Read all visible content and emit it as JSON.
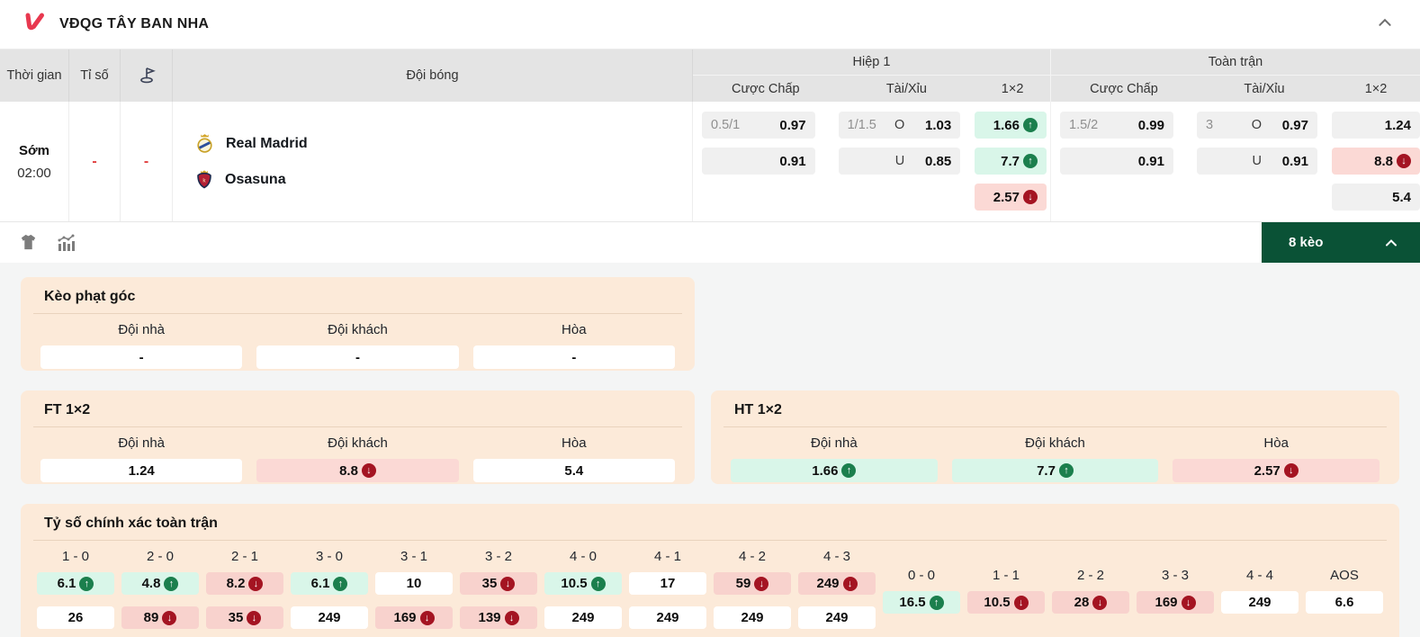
{
  "league_header": {
    "title": "VĐQG TÂY BAN NHA",
    "logo": "laliga-logo",
    "collapse_icon": "chevron-up"
  },
  "table": {
    "header": {
      "time": "Thời gian",
      "score": "Tỉ số",
      "corner_icon": "corner-flag-icon",
      "teams": "Đội bóng",
      "first_half": "Hiệp 1",
      "full_time": "Toàn trận",
      "handicap": "Cược Chấp",
      "over_under": "Tài/Xỉu",
      "one_x_two": "1×2"
    },
    "match": {
      "time_status": "Sớm",
      "time": "02:00",
      "score": "-",
      "corner": "-",
      "home_team": "Real Madrid",
      "away_team": "Osasuna",
      "first_half": {
        "handicap": [
          {
            "line": "0.5/1",
            "odds": "0.97"
          },
          {
            "line": "",
            "odds": "0.91"
          }
        ],
        "over_under": [
          {
            "line": "1/1.5",
            "side": "O",
            "odds": "1.03"
          },
          {
            "line": "",
            "side": "U",
            "odds": "0.85"
          }
        ],
        "one_x_two": [
          {
            "odds": "1.66",
            "trend": "up"
          },
          {
            "odds": "7.7",
            "trend": "up"
          },
          {
            "odds": "2.57",
            "trend": "down"
          }
        ]
      },
      "full_time": {
        "handicap": [
          {
            "line": "1.5/2",
            "odds": "0.99"
          },
          {
            "line": "",
            "odds": "0.91"
          }
        ],
        "over_under": [
          {
            "line": "3",
            "side": "O",
            "odds": "0.97"
          },
          {
            "line": "",
            "side": "U",
            "odds": "0.91"
          }
        ],
        "one_x_two": [
          {
            "odds": "1.24"
          },
          {
            "odds": "8.8",
            "trend": "down"
          },
          {
            "odds": "5.4"
          }
        ]
      }
    }
  },
  "toolbar": {
    "jersey_icon": "jersey-icon",
    "stats_icon": "stats-icon",
    "markets_button": "8 kèo",
    "markets_chevron": "chevron-up"
  },
  "corner_section": {
    "title": "Kèo phạt góc",
    "columns": [
      "Đội nhà",
      "Đội khách",
      "Hòa"
    ],
    "values": [
      {
        "odds": "-"
      },
      {
        "odds": "-"
      },
      {
        "odds": "-"
      }
    ]
  },
  "ft_1x2_section": {
    "title": "FT 1×2",
    "columns": [
      "Đội nhà",
      "Đội khách",
      "Hòa"
    ],
    "values": [
      {
        "odds": "1.24"
      },
      {
        "odds": "8.8",
        "trend": "down"
      },
      {
        "odds": "5.4"
      }
    ]
  },
  "ht_1x2_section": {
    "title": "HT 1×2",
    "columns": [
      "Đội nhà",
      "Đội khách",
      "Hòa"
    ],
    "values": [
      {
        "odds": "1.66",
        "trend": "up"
      },
      {
        "odds": "7.7",
        "trend": "up"
      },
      {
        "odds": "2.57",
        "trend": "down"
      }
    ]
  },
  "correct_score_section": {
    "title": "Tỷ số chính xác toàn trận",
    "scores": [
      {
        "label": "1 - 0",
        "top": {
          "odds": "6.1",
          "trend": "up"
        },
        "bottom": {
          "odds": "26"
        }
      },
      {
        "label": "2 - 0",
        "top": {
          "odds": "4.8",
          "trend": "up"
        },
        "bottom": {
          "odds": "89",
          "trend": "down"
        }
      },
      {
        "label": "2 - 1",
        "top": {
          "odds": "8.2",
          "trend": "down"
        },
        "bottom": {
          "odds": "35",
          "trend": "down"
        }
      },
      {
        "label": "3 - 0",
        "top": {
          "odds": "6.1",
          "trend": "up"
        },
        "bottom": {
          "odds": "249"
        }
      },
      {
        "label": "3 - 1",
        "top": {
          "odds": "10"
        },
        "bottom": {
          "odds": "169",
          "trend": "down"
        }
      },
      {
        "label": "3 - 2",
        "top": {
          "odds": "35",
          "trend": "down"
        },
        "bottom": {
          "odds": "139",
          "trend": "down"
        }
      },
      {
        "label": "4 - 0",
        "top": {
          "odds": "10.5",
          "trend": "up"
        },
        "bottom": {
          "odds": "249"
        }
      },
      {
        "label": "4 - 1",
        "top": {
          "odds": "17"
        },
        "bottom": {
          "odds": "249"
        }
      },
      {
        "label": "4 - 2",
        "top": {
          "odds": "59",
          "trend": "down"
        },
        "bottom": {
          "odds": "249"
        }
      },
      {
        "label": "4 - 3",
        "top": {
          "odds": "249",
          "trend": "down"
        },
        "bottom": {
          "odds": "249"
        }
      }
    ],
    "draws": [
      {
        "label": "0 - 0",
        "value": {
          "odds": "16.5",
          "trend": "up"
        }
      },
      {
        "label": "1 - 1",
        "value": {
          "odds": "10.5",
          "trend": "down"
        }
      },
      {
        "label": "2 - 2",
        "value": {
          "odds": "28",
          "trend": "down"
        }
      },
      {
        "label": "3 - 3",
        "value": {
          "odds": "169",
          "trend": "down"
        }
      },
      {
        "label": "4 - 4",
        "value": {
          "odds": "249"
        }
      },
      {
        "label": "AOS",
        "value": {
          "odds": "6.6"
        }
      }
    ]
  },
  "colors": {
    "brand_red": "#e8384f",
    "trend_up_badge": "#1b7f4d",
    "trend_down_badge": "#a41422",
    "odds_up_bg": "#d9f6e9",
    "odds_down_bg": "#fbd9d5",
    "markets_button_bg": "#0a5236",
    "card_bg": "#fcead9",
    "table_header_bg": "#e4e4e4"
  }
}
